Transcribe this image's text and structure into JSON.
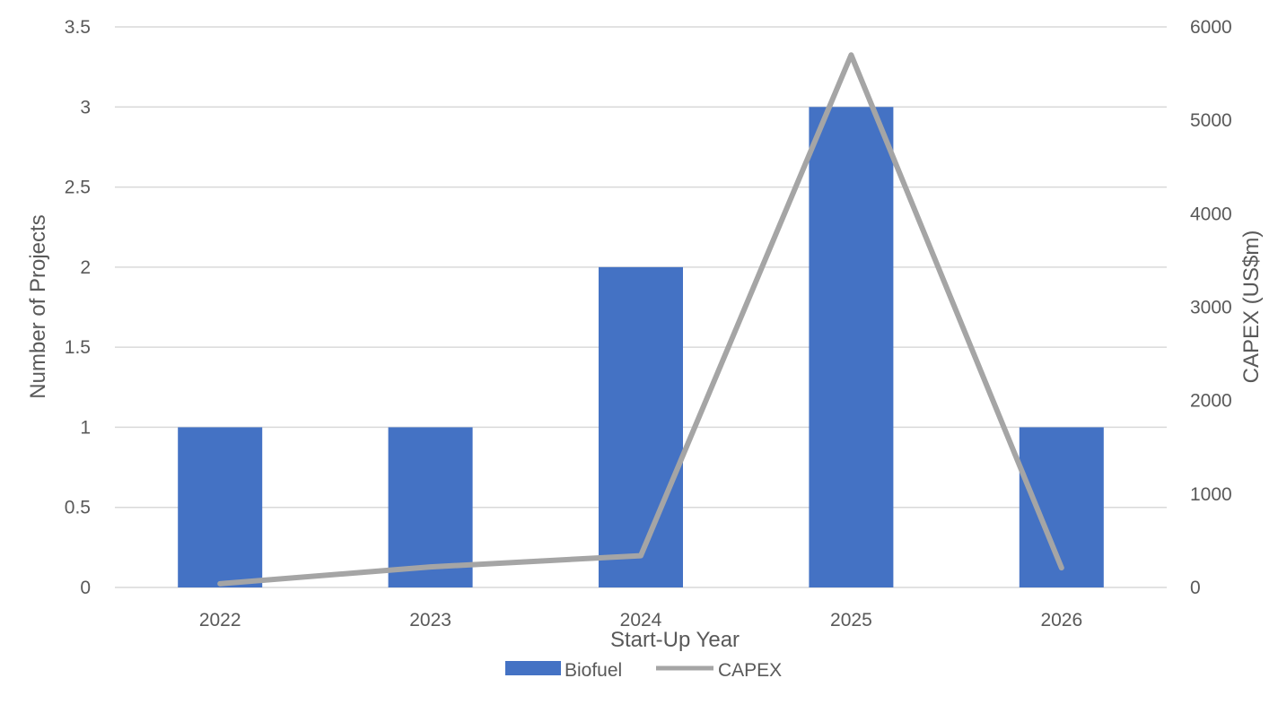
{
  "chart_data": {
    "type": "bar",
    "categories": [
      "2022",
      "2023",
      "2024",
      "2025",
      "2026"
    ],
    "series": [
      {
        "name": "Biofuel",
        "type": "bar",
        "axis": "left",
        "values": [
          1,
          1,
          2,
          3,
          1
        ],
        "color": "#4472C4"
      },
      {
        "name": "CAPEX",
        "type": "line",
        "axis": "right",
        "values": [
          40,
          220,
          340,
          5700,
          210
        ],
        "color": "#A5A5A5"
      }
    ],
    "xlabel": "Start-Up Year",
    "ylabel": "Number of Projects",
    "y2label": "CAPEX (US$m)",
    "ylim": [
      0,
      3.5
    ],
    "y2lim": [
      0,
      6000
    ],
    "y_ticks": [
      "0",
      "0.5",
      "1",
      "1.5",
      "2",
      "2.5",
      "3",
      "3.5"
    ],
    "y2_ticks": [
      "0",
      "1000",
      "2000",
      "3000",
      "4000",
      "5000",
      "6000"
    ],
    "grid": true,
    "legend": "bottom",
    "gridline_color": "#D9D9D9"
  }
}
